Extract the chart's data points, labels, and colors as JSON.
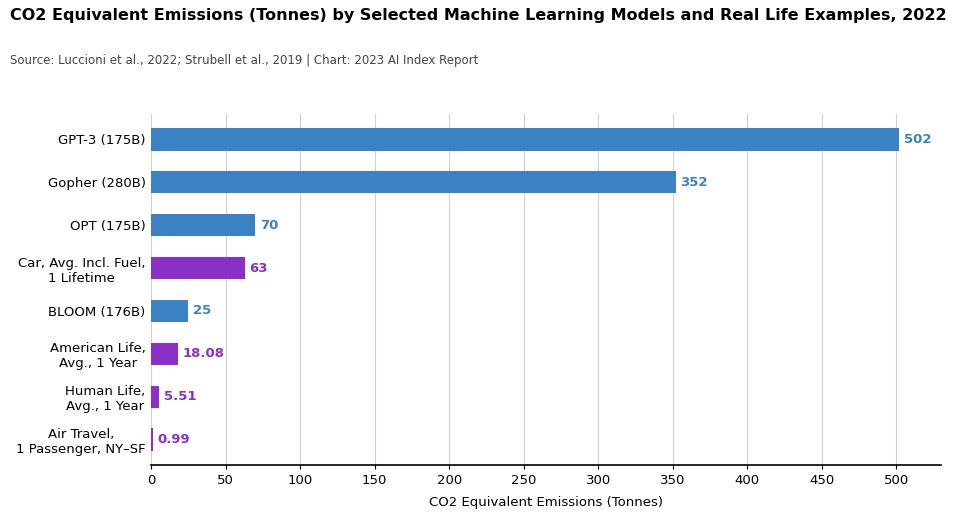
{
  "title": "CO2 Equivalent Emissions (Tonnes) by Selected Machine Learning Models and Real Life Examples, 2022",
  "subtitle": "Source: Luccioni et al., 2022; Strubell et al., 2019 | Chart: 2023 AI Index Report",
  "xlabel": "CO2 Equivalent Emissions (Tonnes)",
  "categories": [
    "Air Travel,\n1 Passenger, NY–SF",
    "Human Life,\nAvg., 1 Year",
    "American Life,\nAvg., 1 Year",
    "BLOOM (176B)",
    "Car, Avg. Incl. Fuel,\n1 Lifetime",
    "OPT (175B)",
    "Gopher (280B)",
    "GPT-3 (175B)"
  ],
  "values": [
    0.99,
    5.51,
    18.08,
    25,
    63,
    70,
    352,
    502
  ],
  "colors": [
    "#8b2fc9",
    "#8b2fc9",
    "#8b2fc9",
    "#3b82c4",
    "#8b2fc9",
    "#3b82c4",
    "#3b82c4",
    "#3b82c4"
  ],
  "value_colors": [
    "#8b2fc9",
    "#8b2fc9",
    "#8b2fc9",
    "#3b82c4",
    "#8b2fc9",
    "#3b82c4",
    "#3b82c4",
    "#3b82c4"
  ],
  "value_labels": [
    "0.99",
    "5.51",
    "18.08",
    "25",
    "63",
    "70",
    "352",
    "502"
  ],
  "xlim": [
    0,
    530
  ],
  "xticks": [
    0,
    50,
    100,
    150,
    200,
    250,
    300,
    350,
    400,
    450,
    500
  ],
  "background_color": "#ffffff",
  "grid_color": "#d0d0d0",
  "title_fontsize": 11.5,
  "subtitle_fontsize": 8.5,
  "label_fontsize": 9.5,
  "tick_fontsize": 9.5,
  "value_fontsize": 9.5,
  "bar_height": 0.52
}
